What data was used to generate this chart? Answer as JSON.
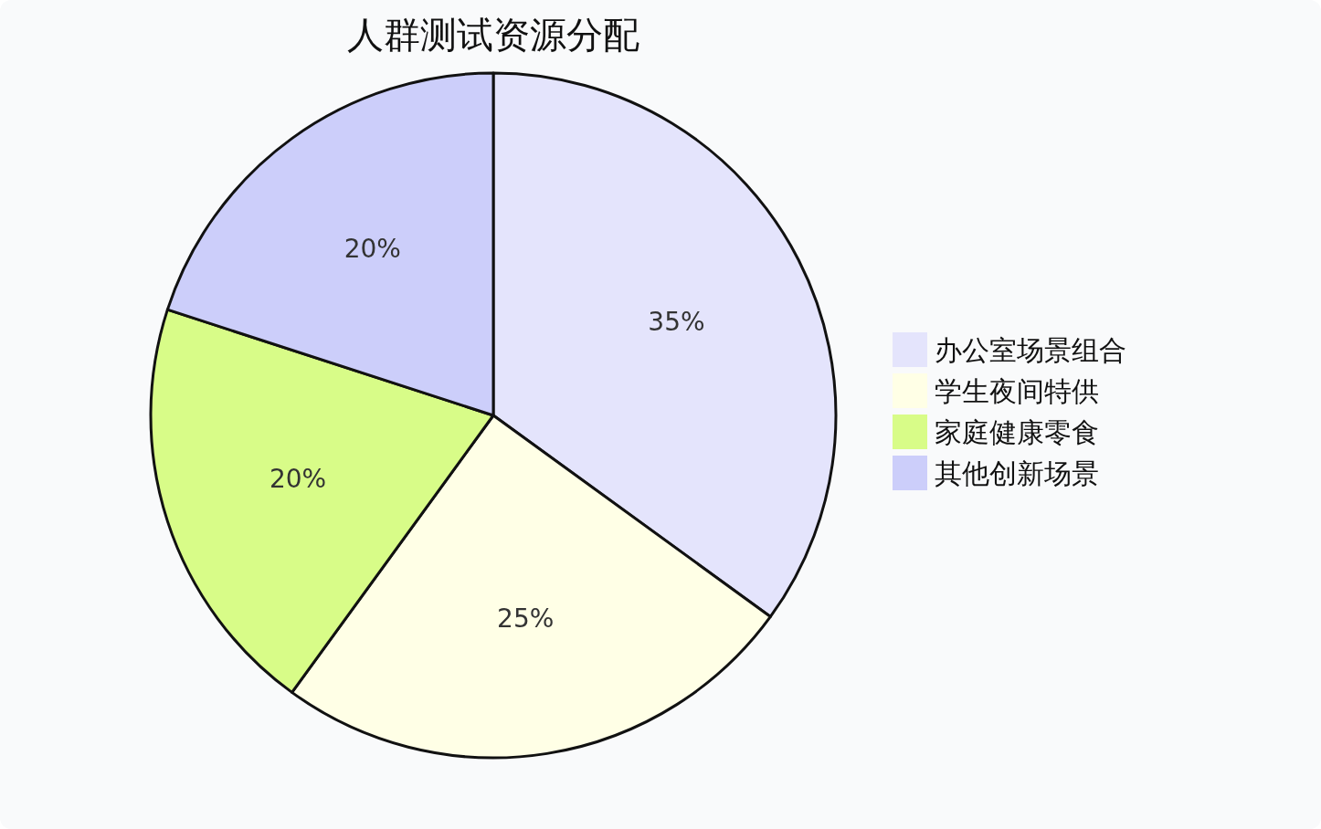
{
  "chart_data": {
    "type": "pie",
    "title": "人群测试资源分配",
    "categories": [
      "办公室场景组合",
      "学生夜间特供",
      "家庭健康零食",
      "其他创新场景"
    ],
    "values": [
      35,
      25,
      20,
      20
    ],
    "colors": [
      "#e4e4fc",
      "#ffffe6",
      "#d8fc88",
      "#cccefa"
    ],
    "value_labels": [
      "35%",
      "25%",
      "20%",
      "20%"
    ],
    "legend": "right"
  }
}
